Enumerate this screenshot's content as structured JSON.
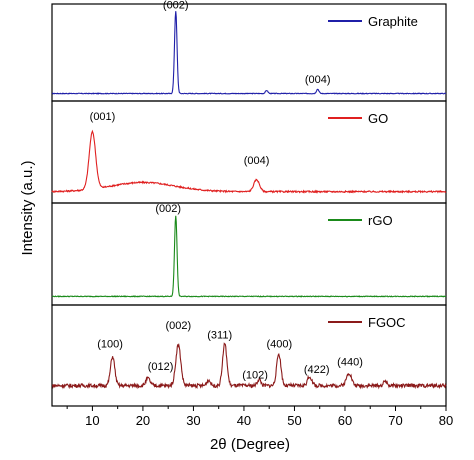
{
  "chart_data": {
    "type": "line",
    "xlabel": "2θ (Degree)",
    "ylabel": "Intensity (a.u.)",
    "xlim": [
      2,
      80
    ],
    "x_ticks": [
      10,
      20,
      30,
      40,
      50,
      60,
      70,
      80
    ],
    "y_ticks_shown": false,
    "stacked_panels": true,
    "legend_position": "top-right of each panel",
    "series": [
      {
        "name": "Graphite",
        "color": "#1f1fa8",
        "baseline": 0.04,
        "noise": 0.004,
        "peaks": [
          {
            "x": 26.5,
            "height": 0.95,
            "width": 0.35
          },
          {
            "x": 44.5,
            "height": 0.035,
            "width": 0.35
          },
          {
            "x": 54.6,
            "height": 0.05,
            "width": 0.35
          }
        ],
        "annotations": [
          {
            "label": "(002)",
            "x": 26.5,
            "y": 1.02
          },
          {
            "label": "(004)",
            "x": 54.6,
            "y": 0.16
          }
        ]
      },
      {
        "name": "GO",
        "color": "#e02020",
        "baseline": 0.08,
        "noise": 0.008,
        "broad": [
          {
            "x": 20,
            "height": 0.1,
            "width": 9
          }
        ],
        "peaks": [
          {
            "x": 10.0,
            "height": 0.62,
            "width": 0.9
          },
          {
            "x": 42.5,
            "height": 0.13,
            "width": 0.8
          }
        ],
        "annotations": [
          {
            "label": "(001)",
            "x": 12.0,
            "y": 0.86
          },
          {
            "label": "(004)",
            "x": 42.5,
            "y": 0.38
          }
        ]
      },
      {
        "name": "rGO",
        "color": "#1a8a1a",
        "baseline": 0.05,
        "noise": 0.004,
        "peaks": [
          {
            "x": 26.5,
            "height": 0.88,
            "width": 0.35
          }
        ],
        "annotations": [
          {
            "label": "(002)",
            "x": 25.0,
            "y": 0.97
          }
        ]
      },
      {
        "name": "FGOC",
        "color": "#8b1a1a",
        "baseline": 0.18,
        "noise": 0.02,
        "peaks": [
          {
            "x": 14.0,
            "height": 0.32,
            "width": 0.6
          },
          {
            "x": 21.0,
            "height": 0.08,
            "width": 0.6
          },
          {
            "x": 27.0,
            "height": 0.45,
            "width": 0.7
          },
          {
            "x": 33.0,
            "height": 0.06,
            "width": 0.5
          },
          {
            "x": 36.2,
            "height": 0.46,
            "width": 0.6
          },
          {
            "x": 43.0,
            "height": 0.07,
            "width": 0.5
          },
          {
            "x": 46.9,
            "height": 0.35,
            "width": 0.6
          },
          {
            "x": 53.0,
            "height": 0.1,
            "width": 0.6
          },
          {
            "x": 60.8,
            "height": 0.14,
            "width": 0.7
          },
          {
            "x": 68.0,
            "height": 0.05,
            "width": 0.5
          }
        ],
        "annotations": [
          {
            "label": "(100)",
            "x": 13.5,
            "y": 0.6
          },
          {
            "label": "(012)",
            "x": 23.5,
            "y": 0.35
          },
          {
            "label": "(002)",
            "x": 27.0,
            "y": 0.8
          },
          {
            "label": "(311)",
            "x": 35.2,
            "y": 0.7
          },
          {
            "label": "(102)",
            "x": 42.2,
            "y": 0.26
          },
          {
            "label": "(400)",
            "x": 47.0,
            "y": 0.6
          },
          {
            "label": "(422)",
            "x": 54.4,
            "y": 0.32
          },
          {
            "label": "(440)",
            "x": 61.0,
            "y": 0.4
          }
        ]
      }
    ]
  }
}
